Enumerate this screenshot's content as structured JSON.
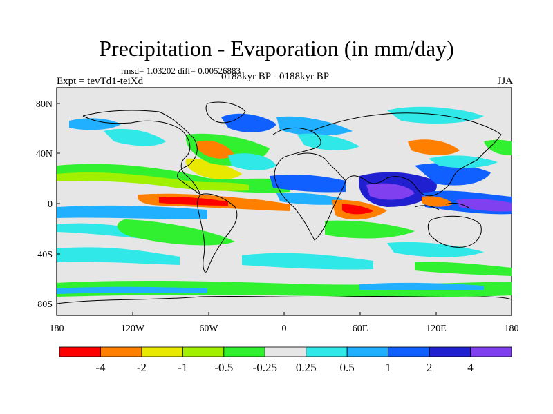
{
  "title": "Precipitation - Evaporation (in mm/day)",
  "stats": "rmsd= 1.03202 diff= 0.00526883",
  "expt": "Expt = tevTd1-teiXd",
  "period": "0188kyr BP - 0188kyr BP",
  "season": "JJA",
  "axes": {
    "y_ticks": [
      "80N",
      "40N",
      "0",
      "40S",
      "80S"
    ],
    "x_ticks": [
      "180",
      "120W",
      "60W",
      "0",
      "60E",
      "120E",
      "180"
    ]
  },
  "colorbar": {
    "colors": [
      "#ff0000",
      "#ff8000",
      "#e8e800",
      "#a0f000",
      "#30f030",
      "#e6e6e6",
      "#30e8e8",
      "#20b0ff",
      "#1060ff",
      "#2020d0",
      "#8040f0"
    ],
    "labels": [
      "-4",
      "-2",
      "-1",
      "-0.5",
      "-0.25",
      "0.25",
      "0.5",
      "1",
      "2",
      "4"
    ]
  },
  "map": {
    "background_color": "#e6e6e6",
    "coastline_color": "#000000"
  }
}
